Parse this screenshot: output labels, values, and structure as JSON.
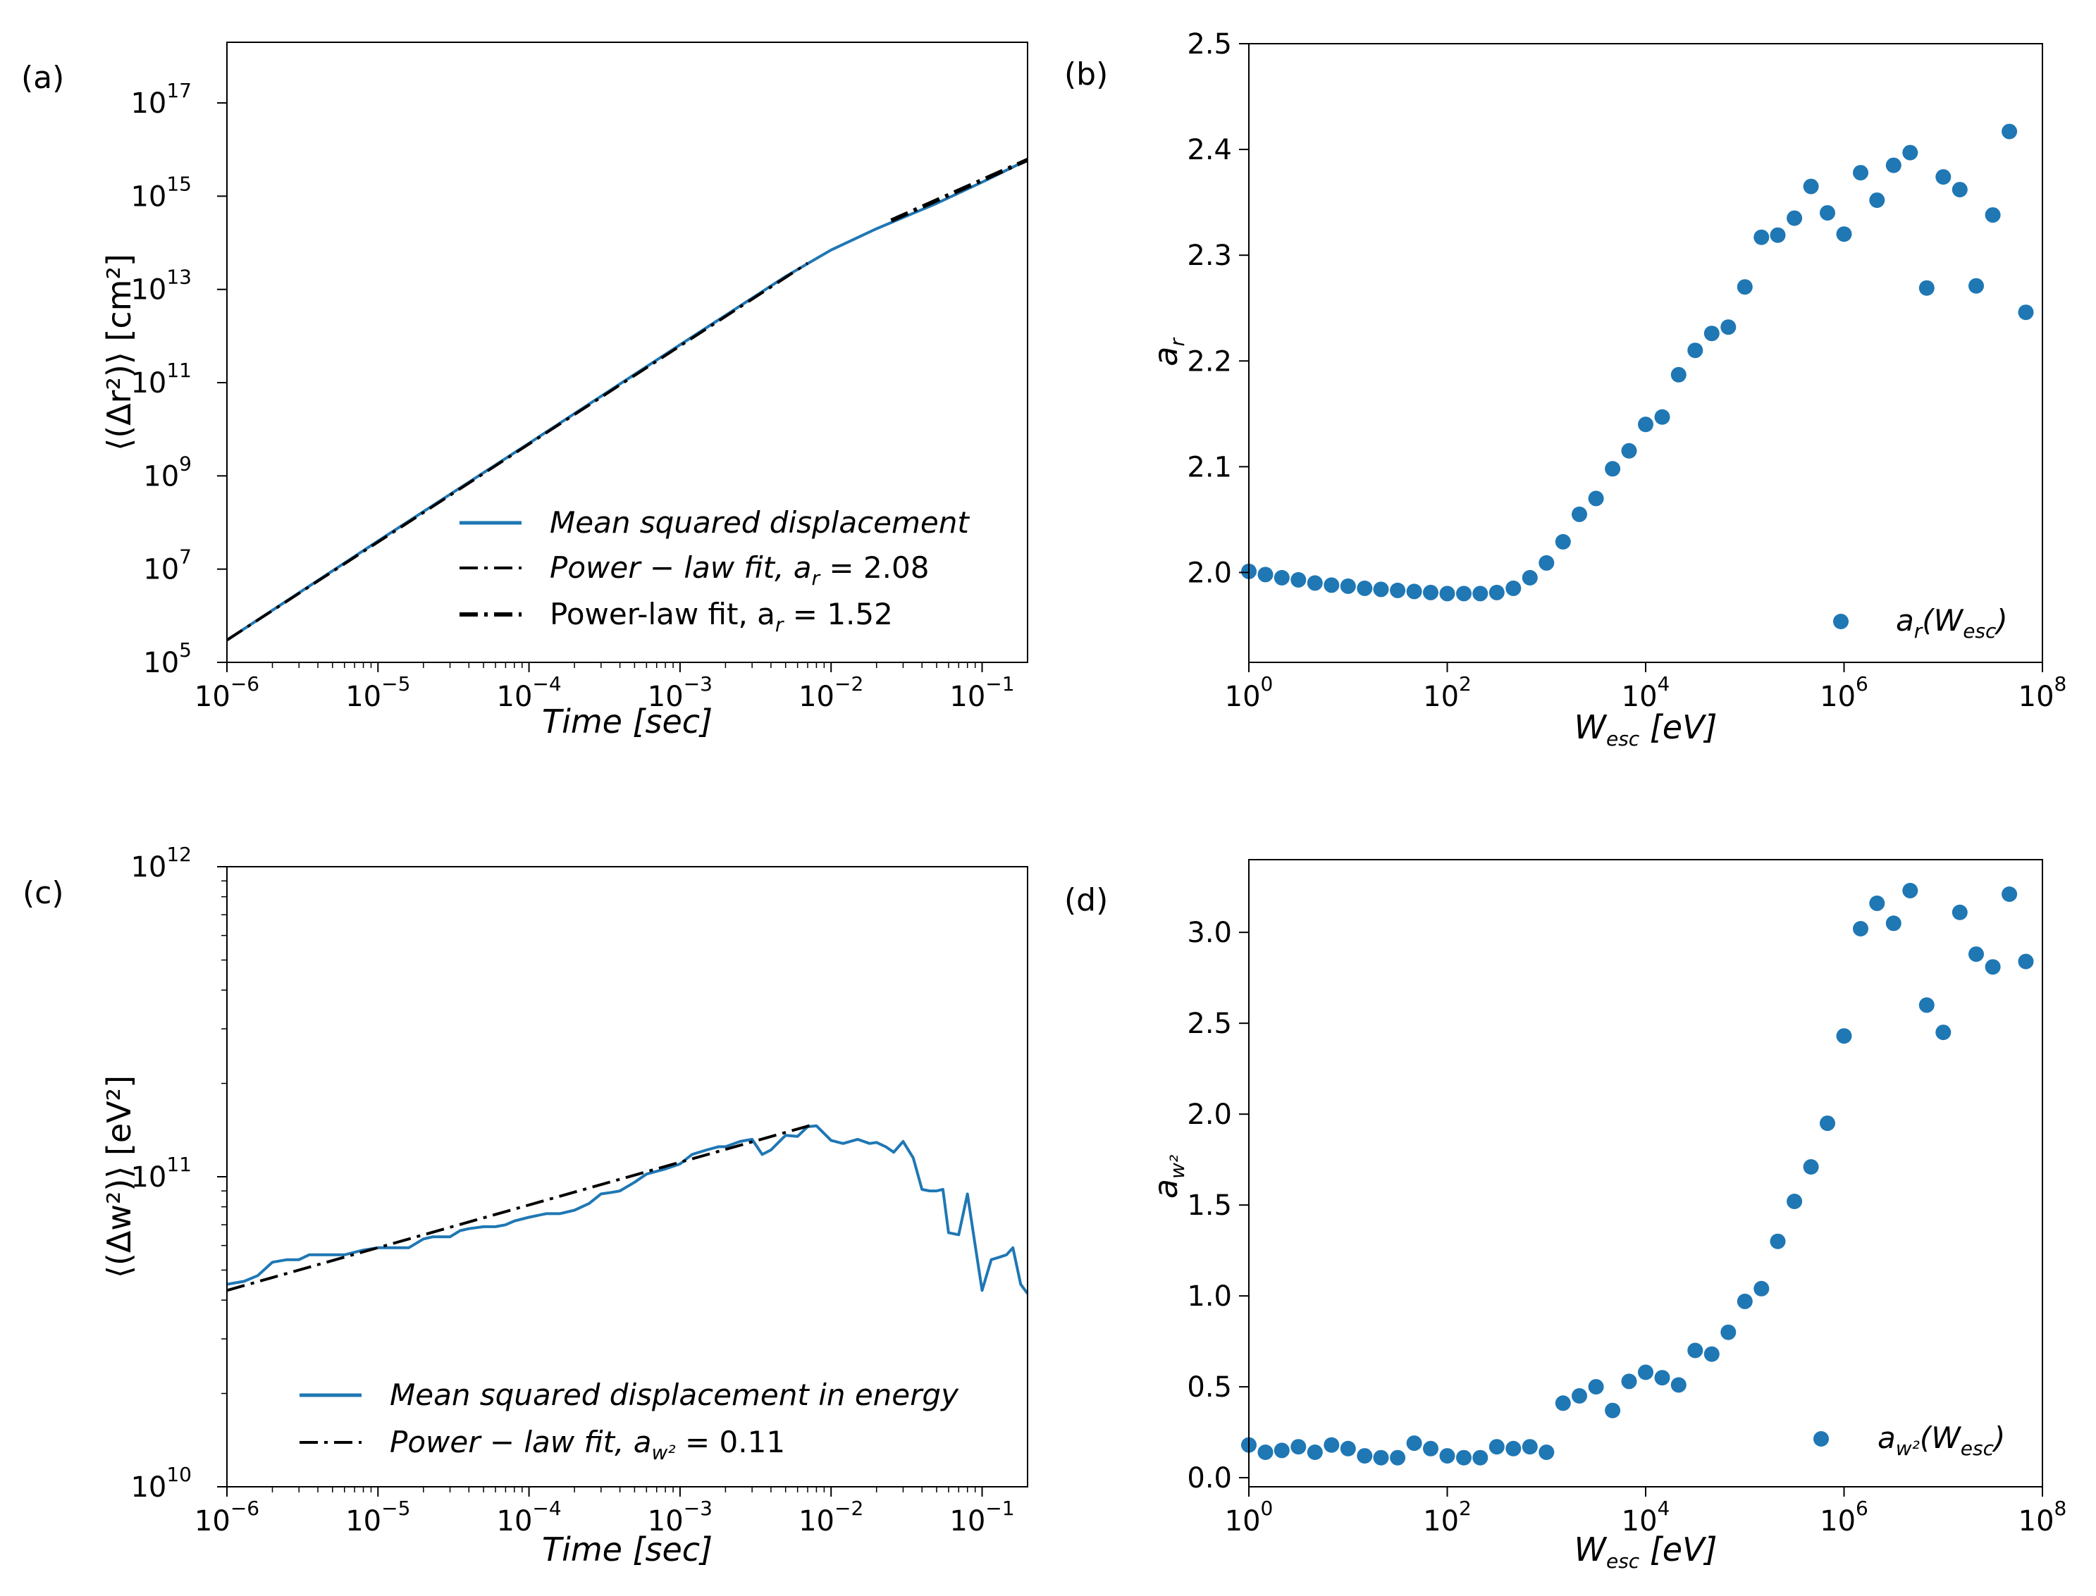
{
  "chart_data": [
    {
      "panel": "(a)",
      "type": "line",
      "xlabel": "Time [sec]",
      "ylabel": "⟨(Δr²)⟩ [cm²]",
      "xscale": "log",
      "yscale": "log",
      "xlim": [
        1e-06,
        0.2
      ],
      "ylim": [
        100000.0,
        2e+18
      ],
      "x_ticks": [
        "-6",
        "-5",
        "-4",
        "-3",
        "-2",
        "-1"
      ],
      "y_ticks": [
        "5",
        "7",
        "9",
        "11",
        "13",
        "15",
        "17"
      ],
      "tick_base": "10",
      "legend_position": "lower-right",
      "series": [
        {
          "name": "Mean squared displacement",
          "color": "#1f77b4",
          "style": "solid",
          "x": [
            1e-06,
            1e-05,
            0.0001,
            0.001,
            0.005,
            0.01,
            0.02,
            0.05,
            0.1,
            0.2
          ],
          "y": [
            300000.0,
            40000000.0,
            5000000000.0,
            650000000000.0,
            19000000000000.0,
            70000000000000.0,
            200000000000000.0,
            700000000000000.0,
            2000000000000000.0,
            6000000000000000.0
          ]
        },
        {
          "name": "Power − law fit,  a",
          "sub": "r",
          "value_text": " = 2.08",
          "color": "#000000",
          "style": "dashdot",
          "x": [
            1e-06,
            0.007
          ],
          "y": [
            300000.0,
            36700000000000.0
          ]
        },
        {
          "name": "Power-law fit, a",
          "sub": "r",
          "value_text": " = 1.52",
          "color": "#000000",
          "style": "dashdot-bold",
          "x": [
            0.025,
            0.2
          ],
          "y": [
            300000000000000.0,
            6000000000000000.0
          ]
        }
      ]
    },
    {
      "panel": "(b)",
      "type": "scatter",
      "xlabel": "W",
      "xlabel_sub": "esc",
      "xlabel_unit": " [eV]",
      "ylabel": "a",
      "ylabel_sub": "r",
      "xscale": "log",
      "xlim": [
        1,
        100000000.0
      ],
      "ylim": [
        1.915,
        2.5
      ],
      "x_ticks": [
        "0",
        "2",
        "4",
        "6",
        "8"
      ],
      "tick_base": "10",
      "y_ticks": [
        "2.0",
        "2.1",
        "2.2",
        "2.3",
        "2.4",
        "2.5"
      ],
      "legend_position": "lower-right",
      "series": [
        {
          "name": "a",
          "name_sub": "r",
          "name_tail": "(W",
          "name_tail_sub": "esc",
          "name_end": ")",
          "color": "#1f77b4",
          "x": [
            1.0,
            1.47,
            2.15,
            3.16,
            4.64,
            6.81,
            10.0,
            14.7,
            21.5,
            31.6,
            46.4,
            68.1,
            100,
            147,
            215,
            316,
            464,
            681,
            1000,
            1470,
            2150,
            3160,
            4640,
            6810,
            10000,
            14700,
            21500,
            31600,
            46400,
            68100,
            100000,
            147000,
            215000,
            316000,
            464000,
            681000,
            1000000,
            1470000,
            2150000,
            3160000,
            4640000,
            6810000,
            10000000,
            14700000,
            21500000,
            31600000,
            46400000,
            68100000
          ],
          "y": [
            2.001,
            1.998,
            1.995,
            1.993,
            1.99,
            1.988,
            1.987,
            1.985,
            1.984,
            1.983,
            1.982,
            1.981,
            1.98,
            1.98,
            1.98,
            1.981,
            1.985,
            1.995,
            2.009,
            2.029,
            2.055,
            2.07,
            2.098,
            2.115,
            2.14,
            2.147,
            2.187,
            2.21,
            2.226,
            2.232,
            2.27,
            2.317,
            2.319,
            2.335,
            2.365,
            2.34,
            2.32,
            2.378,
            2.352,
            2.385,
            2.397,
            2.269,
            2.374,
            2.362,
            2.271,
            2.338,
            2.417,
            2.246
          ]
        }
      ]
    },
    {
      "panel": "(c)",
      "type": "line",
      "xlabel": "Time [sec]",
      "ylabel": "⟨(Δw²)⟩ [eV²]",
      "xscale": "log",
      "yscale": "log",
      "xlim": [
        1e-06,
        0.2
      ],
      "ylim": [
        10000000000.0,
        1000000000000.0
      ],
      "x_ticks": [
        "-6",
        "-5",
        "-4",
        "-3",
        "-2",
        "-1"
      ],
      "y_ticks": [
        "10",
        "11",
        "12"
      ],
      "tick_base": "10",
      "legend_position": "lower-right",
      "series": [
        {
          "name": "Mean squared displacement in energy",
          "color": "#1f77b4",
          "style": "solid",
          "x": [
            1e-06,
            1.3e-06,
            1.6e-06,
            2e-06,
            2.5e-06,
            3e-06,
            3.5e-06,
            4e-06,
            5e-06,
            6e-06,
            8e-06,
            1e-05,
            1.3e-05,
            1.6e-05,
            2e-05,
            2.3e-05,
            2.6e-05,
            3e-05,
            3.5e-05,
            4e-05,
            5e-05,
            6e-05,
            7e-05,
            8e-05,
            0.0001,
            0.00013,
            0.00016,
            0.0002,
            0.00025,
            0.0003,
            0.00035,
            0.0004,
            0.0005,
            0.0006,
            0.0008,
            0.001,
            0.0012,
            0.0015,
            0.0018,
            0.002,
            0.0025,
            0.003,
            0.0035,
            0.004,
            0.005,
            0.006,
            0.007,
            0.008,
            0.01,
            0.012,
            0.015,
            0.018,
            0.02,
            0.023,
            0.026,
            0.03,
            0.035,
            0.04,
            0.045,
            0.05,
            0.055,
            0.06,
            0.07,
            0.08,
            0.09,
            0.1,
            0.115,
            0.13,
            0.145,
            0.16,
            0.18,
            0.2
          ],
          "y": [
            45000000000.0,
            46000000000.0,
            48000000000.0,
            53000000000.0,
            54000000000.0,
            54000000000.0,
            56000000000.0,
            56000000000.0,
            56000000000.0,
            56000000000.0,
            58000000000.0,
            59000000000.0,
            59000000000.0,
            59000000000.0,
            63000000000.0,
            64000000000.0,
            64000000000.0,
            64000000000.0,
            67000000000.0,
            68000000000.0,
            69000000000.0,
            69000000000.0,
            70000000000.0,
            72000000000.0,
            74000000000.0,
            76000000000.0,
            76000000000.0,
            78000000000.0,
            82000000000.0,
            88000000000.0,
            89000000000.0,
            90000000000.0,
            96000000000.0,
            102000000000.0,
            106000000000.0,
            110000000000.0,
            118000000000.0,
            122000000000.0,
            125000000000.0,
            125000000000.0,
            130000000000.0,
            132000000000.0,
            118000000000.0,
            122000000000.0,
            136000000000.0,
            135000000000.0,
            145000000000.0,
            146000000000.0,
            131000000000.0,
            128000000000.0,
            132000000000.0,
            128000000000.0,
            129000000000.0,
            125000000000.0,
            120000000000.0,
            130000000000.0,
            115000000000.0,
            91000000000.0,
            90000000000.0,
            90000000000.0,
            91000000000.0,
            66000000000.0,
            65000000000.0,
            88000000000.0,
            60000000000.0,
            43000000000.0,
            54000000000.0,
            55000000000.0,
            56000000000.0,
            59000000000.0,
            45000000000.0,
            42000000000.0
          ]
        },
        {
          "name": "Power − law fit,  a",
          "sub": "w²",
          "value_text": " = 0.11",
          "color": "#000000",
          "style": "dashdot",
          "x": [
            1e-06,
            0.0075
          ],
          "y": [
            43000000000.0,
            147000000000.0
          ]
        }
      ]
    },
    {
      "panel": "(d)",
      "type": "scatter",
      "xlabel": "W",
      "xlabel_sub": "esc",
      "xlabel_unit": " [eV]",
      "ylabel": "a",
      "ylabel_sub": "w²",
      "xscale": "log",
      "xlim": [
        1,
        100000000.0
      ],
      "ylim": [
        -0.05,
        3.4
      ],
      "x_ticks": [
        "0",
        "2",
        "4",
        "6",
        "8"
      ],
      "tick_base": "10",
      "y_ticks": [
        "0.0",
        "0.5",
        "1.0",
        "1.5",
        "2.0",
        "2.5",
        "3.0"
      ],
      "legend_position": "lower-right",
      "series": [
        {
          "name": "a",
          "name_sub": "w²",
          "name_tail": "(W",
          "name_tail_sub": "esc",
          "name_end": ")",
          "color": "#1f77b4",
          "x": [
            1.0,
            1.47,
            2.15,
            3.16,
            4.64,
            6.81,
            10.0,
            14.7,
            21.5,
            31.6,
            46.4,
            68.1,
            100,
            147,
            215,
            316,
            464,
            681,
            1000,
            1470,
            2150,
            3160,
            4640,
            6810,
            10000,
            14700,
            21500,
            31600,
            46400,
            68100,
            100000,
            147000,
            215000,
            316000,
            464000,
            681000,
            1000000,
            1470000,
            2150000,
            3160000,
            4640000,
            6810000,
            10000000,
            14700000,
            21500000,
            31600000,
            46400000,
            68100000
          ],
          "y": [
            0.18,
            0.14,
            0.15,
            0.17,
            0.14,
            0.18,
            0.16,
            0.12,
            0.11,
            0.11,
            0.19,
            0.16,
            0.12,
            0.11,
            0.11,
            0.17,
            0.16,
            0.17,
            0.14,
            0.41,
            0.45,
            0.5,
            0.37,
            0.53,
            0.58,
            0.55,
            0.51,
            0.7,
            0.68,
            0.8,
            0.97,
            1.04,
            1.3,
            1.52,
            1.71,
            1.95,
            2.43,
            3.02,
            3.16,
            3.05,
            3.23,
            2.6,
            2.45,
            3.11,
            2.88,
            2.81,
            3.21,
            2.84
          ]
        }
      ]
    }
  ]
}
